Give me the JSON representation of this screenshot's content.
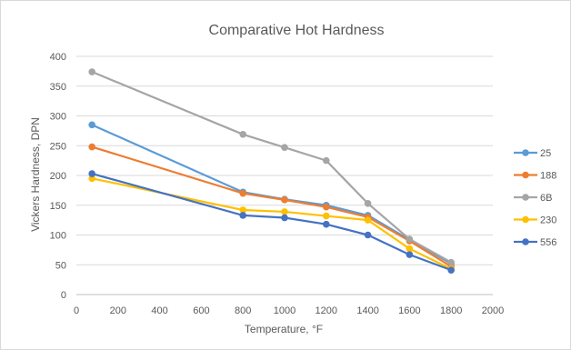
{
  "chart_data": {
    "type": "line",
    "title": "Comparative Hot Hardness",
    "xlabel": "Temperature, °F",
    "ylabel": "Vickers Hardness, DPN",
    "xlim": [
      0,
      2000
    ],
    "ylim": [
      0,
      400
    ],
    "xticks": [
      0,
      200,
      400,
      600,
      800,
      1000,
      1200,
      1400,
      1600,
      1800,
      2000
    ],
    "yticks": [
      0,
      50,
      100,
      150,
      200,
      250,
      300,
      350,
      400
    ],
    "grid": true,
    "legend_position": "right",
    "series": [
      {
        "name": "25",
        "color": "#5b9bd5",
        "x": [
          75,
          800,
          1000,
          1200,
          1400,
          1600,
          1800
        ],
        "y": [
          285,
          172,
          160,
          150,
          133,
          92,
          52
        ]
      },
      {
        "name": "188",
        "color": "#ed7d31",
        "x": [
          75,
          800,
          1000,
          1200,
          1400,
          1600,
          1800
        ],
        "y": [
          248,
          170,
          159,
          147,
          130,
          90,
          47
        ]
      },
      {
        "name": "6B",
        "color": "#a5a5a5",
        "x": [
          75,
          800,
          1000,
          1200,
          1400,
          1600,
          1800
        ],
        "y": [
          374,
          269,
          247,
          225,
          153,
          93,
          54
        ]
      },
      {
        "name": "230",
        "color": "#ffc000",
        "x": [
          75,
          800,
          1000,
          1200,
          1400,
          1600,
          1800
        ],
        "y": [
          195,
          142,
          139,
          132,
          125,
          77,
          43
        ]
      },
      {
        "name": "556",
        "color": "#4472c4",
        "x": [
          75,
          800,
          1000,
          1200,
          1400,
          1600,
          1800
        ],
        "y": [
          203,
          133,
          129,
          118,
          100,
          67,
          41
        ]
      }
    ]
  }
}
